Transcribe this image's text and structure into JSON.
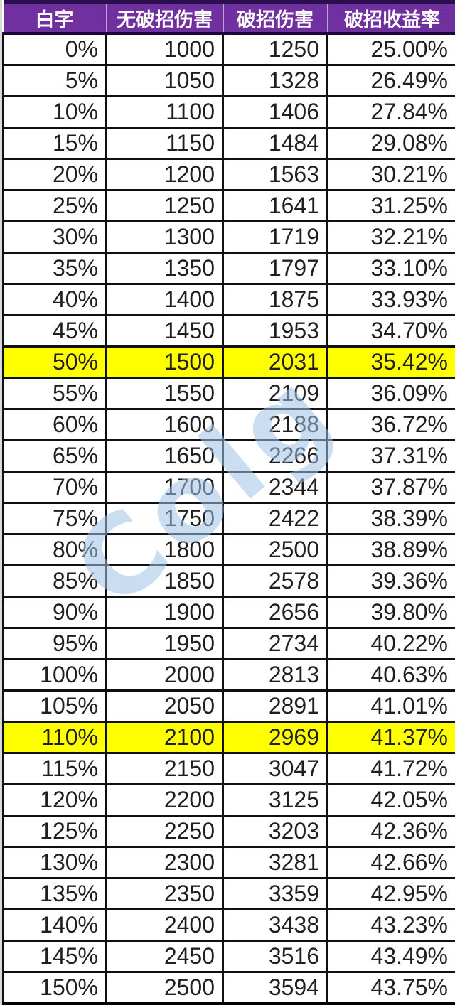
{
  "watermark": {
    "text": "Colg",
    "star_glyph": "✦",
    "color": "#9fc3e7",
    "star_color": "#f2b53d"
  },
  "colors": {
    "header_bg": "#7030A0",
    "header_text": "#FFFFFF",
    "highlight_bg": "#FFFF00",
    "grid": "#101010",
    "header_top_border": "#2B0E50"
  },
  "chart_data": {
    "type": "table",
    "title": "",
    "columns": [
      "白字",
      "无破招伤害",
      "破招伤害",
      "破招收益率"
    ],
    "rows": [
      [
        "0%",
        "1000",
        "1250",
        "25.00%"
      ],
      [
        "5%",
        "1050",
        "1328",
        "26.49%"
      ],
      [
        "10%",
        "1100",
        "1406",
        "27.84%"
      ],
      [
        "15%",
        "1150",
        "1484",
        "29.08%"
      ],
      [
        "20%",
        "1200",
        "1563",
        "30.21%"
      ],
      [
        "25%",
        "1250",
        "1641",
        "31.25%"
      ],
      [
        "30%",
        "1300",
        "1719",
        "32.21%"
      ],
      [
        "35%",
        "1350",
        "1797",
        "33.10%"
      ],
      [
        "40%",
        "1400",
        "1875",
        "33.93%"
      ],
      [
        "45%",
        "1450",
        "1953",
        "34.70%"
      ],
      [
        "50%",
        "1500",
        "2031",
        "35.42%"
      ],
      [
        "55%",
        "1550",
        "2109",
        "36.09%"
      ],
      [
        "60%",
        "1600",
        "2188",
        "36.72%"
      ],
      [
        "65%",
        "1650",
        "2266",
        "37.31%"
      ],
      [
        "70%",
        "1700",
        "2344",
        "37.87%"
      ],
      [
        "75%",
        "1750",
        "2422",
        "38.39%"
      ],
      [
        "80%",
        "1800",
        "2500",
        "38.89%"
      ],
      [
        "85%",
        "1850",
        "2578",
        "39.36%"
      ],
      [
        "90%",
        "1900",
        "2656",
        "39.80%"
      ],
      [
        "95%",
        "1950",
        "2734",
        "40.22%"
      ],
      [
        "100%",
        "2000",
        "2813",
        "40.63%"
      ],
      [
        "105%",
        "2050",
        "2891",
        "41.01%"
      ],
      [
        "110%",
        "2100",
        "2969",
        "41.37%"
      ],
      [
        "115%",
        "2150",
        "3047",
        "41.72%"
      ],
      [
        "120%",
        "2200",
        "3125",
        "42.05%"
      ],
      [
        "125%",
        "2250",
        "3203",
        "42.36%"
      ],
      [
        "130%",
        "2300",
        "3281",
        "42.66%"
      ],
      [
        "135%",
        "2350",
        "3359",
        "42.95%"
      ],
      [
        "140%",
        "2400",
        "3438",
        "43.23%"
      ],
      [
        "145%",
        "2450",
        "3516",
        "43.49%"
      ],
      [
        "150%",
        "2500",
        "3594",
        "43.75%"
      ]
    ],
    "highlighted_rows": [
      10,
      22
    ]
  }
}
